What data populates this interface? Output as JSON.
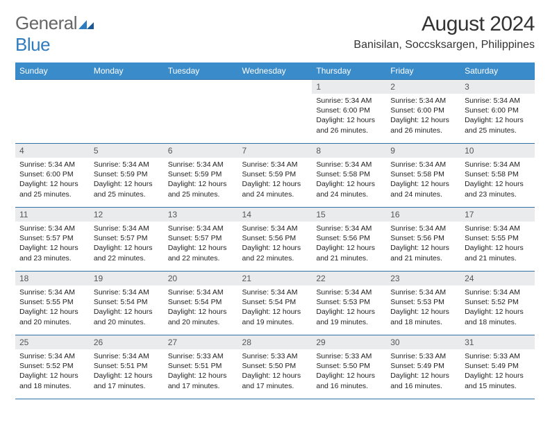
{
  "logo": {
    "text1": "General",
    "text2": "Blue"
  },
  "header": {
    "title": "August 2024",
    "subtitle": "Banisilan, Soccsksargen, Philippines"
  },
  "colors": {
    "header_bg": "#3a8bc9",
    "header_text": "#ffffff",
    "daynum_bg": "#e9ebed",
    "border": "#2f6fa8",
    "logo_gray": "#666666",
    "logo_blue": "#2f7bbf",
    "page_bg": "#ffffff"
  },
  "fontsizes": {
    "month_title": 30,
    "subtitle": 16,
    "day_header": 12,
    "daynum": 12,
    "body": 10.5
  },
  "day_headers": [
    "Sunday",
    "Monday",
    "Tuesday",
    "Wednesday",
    "Thursday",
    "Friday",
    "Saturday"
  ],
  "weeks": [
    [
      {
        "n": "",
        "empty": true
      },
      {
        "n": "",
        "empty": true
      },
      {
        "n": "",
        "empty": true
      },
      {
        "n": "",
        "empty": true
      },
      {
        "n": "1",
        "sunrise": "5:34 AM",
        "sunset": "6:00 PM",
        "dl": "12 hours and 26 minutes."
      },
      {
        "n": "2",
        "sunrise": "5:34 AM",
        "sunset": "6:00 PM",
        "dl": "12 hours and 26 minutes."
      },
      {
        "n": "3",
        "sunrise": "5:34 AM",
        "sunset": "6:00 PM",
        "dl": "12 hours and 25 minutes."
      }
    ],
    [
      {
        "n": "4",
        "sunrise": "5:34 AM",
        "sunset": "6:00 PM",
        "dl": "12 hours and 25 minutes."
      },
      {
        "n": "5",
        "sunrise": "5:34 AM",
        "sunset": "5:59 PM",
        "dl": "12 hours and 25 minutes."
      },
      {
        "n": "6",
        "sunrise": "5:34 AM",
        "sunset": "5:59 PM",
        "dl": "12 hours and 25 minutes."
      },
      {
        "n": "7",
        "sunrise": "5:34 AM",
        "sunset": "5:59 PM",
        "dl": "12 hours and 24 minutes."
      },
      {
        "n": "8",
        "sunrise": "5:34 AM",
        "sunset": "5:58 PM",
        "dl": "12 hours and 24 minutes."
      },
      {
        "n": "9",
        "sunrise": "5:34 AM",
        "sunset": "5:58 PM",
        "dl": "12 hours and 24 minutes."
      },
      {
        "n": "10",
        "sunrise": "5:34 AM",
        "sunset": "5:58 PM",
        "dl": "12 hours and 23 minutes."
      }
    ],
    [
      {
        "n": "11",
        "sunrise": "5:34 AM",
        "sunset": "5:57 PM",
        "dl": "12 hours and 23 minutes."
      },
      {
        "n": "12",
        "sunrise": "5:34 AM",
        "sunset": "5:57 PM",
        "dl": "12 hours and 22 minutes."
      },
      {
        "n": "13",
        "sunrise": "5:34 AM",
        "sunset": "5:57 PM",
        "dl": "12 hours and 22 minutes."
      },
      {
        "n": "14",
        "sunrise": "5:34 AM",
        "sunset": "5:56 PM",
        "dl": "12 hours and 22 minutes."
      },
      {
        "n": "15",
        "sunrise": "5:34 AM",
        "sunset": "5:56 PM",
        "dl": "12 hours and 21 minutes."
      },
      {
        "n": "16",
        "sunrise": "5:34 AM",
        "sunset": "5:56 PM",
        "dl": "12 hours and 21 minutes."
      },
      {
        "n": "17",
        "sunrise": "5:34 AM",
        "sunset": "5:55 PM",
        "dl": "12 hours and 21 minutes."
      }
    ],
    [
      {
        "n": "18",
        "sunrise": "5:34 AM",
        "sunset": "5:55 PM",
        "dl": "12 hours and 20 minutes."
      },
      {
        "n": "19",
        "sunrise": "5:34 AM",
        "sunset": "5:54 PM",
        "dl": "12 hours and 20 minutes."
      },
      {
        "n": "20",
        "sunrise": "5:34 AM",
        "sunset": "5:54 PM",
        "dl": "12 hours and 20 minutes."
      },
      {
        "n": "21",
        "sunrise": "5:34 AM",
        "sunset": "5:54 PM",
        "dl": "12 hours and 19 minutes."
      },
      {
        "n": "22",
        "sunrise": "5:34 AM",
        "sunset": "5:53 PM",
        "dl": "12 hours and 19 minutes."
      },
      {
        "n": "23",
        "sunrise": "5:34 AM",
        "sunset": "5:53 PM",
        "dl": "12 hours and 18 minutes."
      },
      {
        "n": "24",
        "sunrise": "5:34 AM",
        "sunset": "5:52 PM",
        "dl": "12 hours and 18 minutes."
      }
    ],
    [
      {
        "n": "25",
        "sunrise": "5:34 AM",
        "sunset": "5:52 PM",
        "dl": "12 hours and 18 minutes."
      },
      {
        "n": "26",
        "sunrise": "5:34 AM",
        "sunset": "5:51 PM",
        "dl": "12 hours and 17 minutes."
      },
      {
        "n": "27",
        "sunrise": "5:33 AM",
        "sunset": "5:51 PM",
        "dl": "12 hours and 17 minutes."
      },
      {
        "n": "28",
        "sunrise": "5:33 AM",
        "sunset": "5:50 PM",
        "dl": "12 hours and 17 minutes."
      },
      {
        "n": "29",
        "sunrise": "5:33 AM",
        "sunset": "5:50 PM",
        "dl": "12 hours and 16 minutes."
      },
      {
        "n": "30",
        "sunrise": "5:33 AM",
        "sunset": "5:49 PM",
        "dl": "12 hours and 16 minutes."
      },
      {
        "n": "31",
        "sunrise": "5:33 AM",
        "sunset": "5:49 PM",
        "dl": "12 hours and 15 minutes."
      }
    ]
  ]
}
